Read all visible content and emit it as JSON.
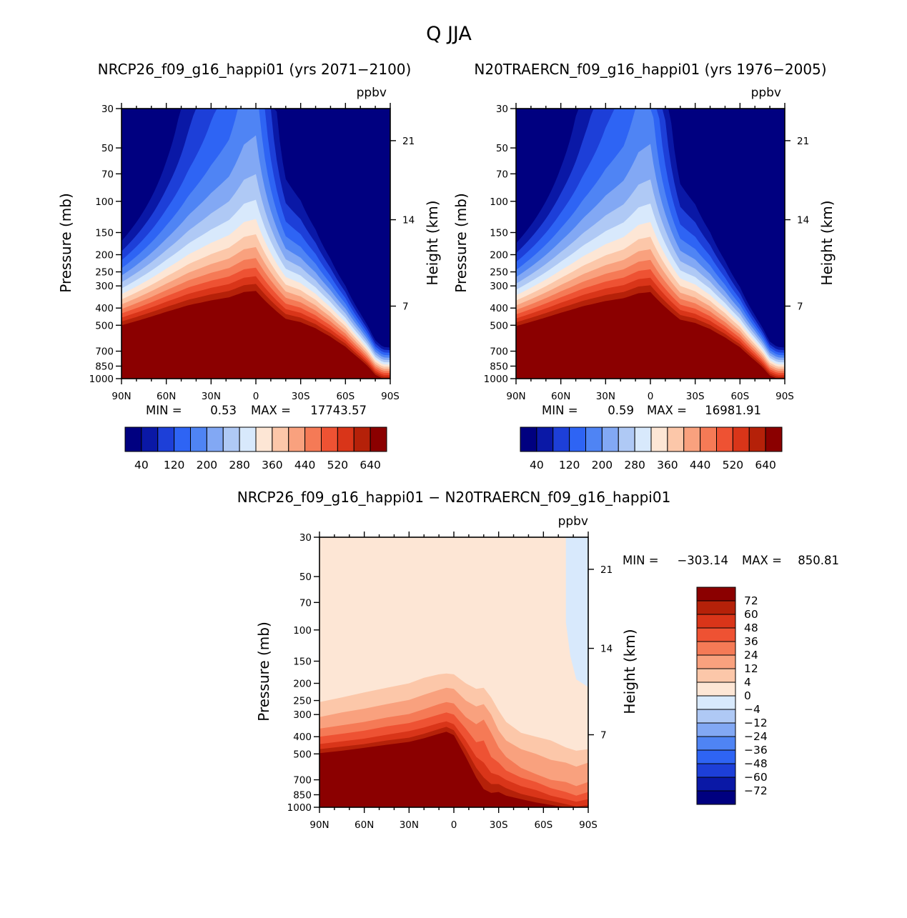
{
  "title": "Q  JJA",
  "chart_data": [
    {
      "type": "heatmap",
      "title": "NRCP26_f09_g16_happi01 (yrs 2071−2100)",
      "units": "ppbv",
      "ylabel": "Pressure (mb)",
      "ylabel_right": "Height (km)",
      "xticks": [
        "90N",
        "60N",
        "30N",
        "0",
        "30S",
        "60S",
        "90S"
      ],
      "xlim": [
        90,
        -90
      ],
      "yticks": [
        "30",
        "50",
        "70",
        "100",
        "150",
        "200",
        "250",
        "300",
        "400",
        "500",
        "700",
        "850",
        "1000"
      ],
      "ytick_values": [
        30,
        50,
        70,
        100,
        150,
        200,
        250,
        300,
        400,
        500,
        700,
        850,
        1000
      ],
      "ylim": [
        30,
        1000
      ],
      "yscale": "log",
      "height_ticks": [
        "21",
        "14",
        "7"
      ],
      "height_tick_pressures": [
        45.5,
        127,
        390
      ],
      "stats": {
        "min_label": "MIN =",
        "min": "0.53",
        "max_label": "MAX =",
        "max": "17743.57"
      },
      "colorbar": {
        "labels": [
          "40",
          "120",
          "200",
          "280",
          "360",
          "440",
          "520",
          "640"
        ],
        "colors": [
          "#000080",
          "#0a18a6",
          "#1d3fd8",
          "#2e64f4",
          "#4f84f4",
          "#82a8f4",
          "#afc9f5",
          "#d8e9fc",
          "#fde6d5",
          "#fcc7a9",
          "#f9a17e",
          "#f57a56",
          "#ee5233",
          "#d93519",
          "#b52109",
          "#8b0000"
        ]
      },
      "tropopause_profile": {
        "lat": [
          90,
          75,
          60,
          45,
          30,
          18,
          8,
          0,
          -10,
          -20,
          -30,
          -40,
          -50,
          -60,
          -70,
          -75,
          -80,
          -85,
          -90
        ],
        "pressure": [
          500,
          460,
          420,
          385,
          362,
          348,
          325,
          320,
          390,
          460,
          480,
          520,
          580,
          660,
          780,
          850,
          950,
          1000,
          1000
        ]
      },
      "level_spacing_mb": 25
    },
    {
      "type": "heatmap",
      "title": "N20TRAERCN_f09_g16_happi01 (yrs 1976−2005)",
      "units": "ppbv",
      "ylabel": "Pressure (mb)",
      "ylabel_right": "Height (km)",
      "xticks": [
        "90N",
        "60N",
        "30N",
        "0",
        "30S",
        "60S",
        "90S"
      ],
      "xlim": [
        90,
        -90
      ],
      "yticks": [
        "30",
        "50",
        "70",
        "100",
        "150",
        "200",
        "250",
        "300",
        "400",
        "500",
        "700",
        "850",
        "1000"
      ],
      "ytick_values": [
        30,
        50,
        70,
        100,
        150,
        200,
        250,
        300,
        400,
        500,
        700,
        850,
        1000
      ],
      "ylim": [
        30,
        1000
      ],
      "yscale": "log",
      "height_ticks": [
        "21",
        "14",
        "7"
      ],
      "height_tick_pressures": [
        45.5,
        127,
        390
      ],
      "stats": {
        "min_label": "MIN =",
        "min": "0.59",
        "max_label": "MAX =",
        "max": "16981.91"
      },
      "colorbar": {
        "labels": [
          "40",
          "120",
          "200",
          "280",
          "360",
          "440",
          "520",
          "640"
        ],
        "colors": [
          "#000080",
          "#0a18a6",
          "#1d3fd8",
          "#2e64f4",
          "#4f84f4",
          "#82a8f4",
          "#afc9f5",
          "#d8e9fc",
          "#fde6d5",
          "#fcc7a9",
          "#f9a17e",
          "#f57a56",
          "#ee5233",
          "#d93519",
          "#b52109",
          "#8b0000"
        ]
      },
      "tropopause_profile": {
        "lat": [
          90,
          75,
          60,
          45,
          30,
          18,
          8,
          0,
          -10,
          -20,
          -30,
          -40,
          -50,
          -60,
          -70,
          -75,
          -80,
          -85,
          -90
        ],
        "pressure": [
          505,
          465,
          425,
          390,
          365,
          352,
          330,
          325,
          395,
          465,
          485,
          525,
          585,
          665,
          790,
          860,
          960,
          1000,
          1000
        ]
      },
      "level_spacing_mb": 25
    },
    {
      "type": "heatmap",
      "title": "NRCP26_f09_g16_happi01 − N20TRAERCN_f09_g16_happi01",
      "units": "ppbv",
      "ylabel": "Pressure (mb)",
      "ylabel_right": "Height (km)",
      "xticks": [
        "90N",
        "60N",
        "30N",
        "0",
        "30S",
        "60S",
        "90S"
      ],
      "xlim": [
        90,
        -90
      ],
      "yticks": [
        "30",
        "50",
        "70",
        "100",
        "150",
        "200",
        "250",
        "300",
        "400",
        "500",
        "700",
        "850",
        "1000"
      ],
      "ytick_values": [
        30,
        50,
        70,
        100,
        150,
        200,
        250,
        300,
        400,
        500,
        700,
        850,
        1000
      ],
      "ylim": [
        30,
        1000
      ],
      "yscale": "log",
      "height_ticks": [
        "21",
        "14",
        "7"
      ],
      "height_tick_pressures": [
        45.5,
        127,
        390
      ],
      "stats": {
        "min_label": "MIN =",
        "min": "−303.14",
        "max_label": "MAX =",
        "max": "850.81"
      },
      "colorbar": {
        "labels": [
          "72",
          "60",
          "48",
          "36",
          "24",
          "12",
          "4",
          "0",
          "−4",
          "−12",
          "−24",
          "−36",
          "−48",
          "−60",
          "−72"
        ],
        "colors": [
          "#8b0000",
          "#b52109",
          "#d93519",
          "#ee5233",
          "#f57a56",
          "#f9a17e",
          "#fcc7a9",
          "#fde6d5",
          "#d8e9fc",
          "#afc9f5",
          "#82a8f4",
          "#4f84f4",
          "#2e64f4",
          "#1d3fd8",
          "#0a18a6",
          "#000080"
        ]
      },
      "regions": [
        {
          "level": "0 to 4",
          "color": "#fde6d5",
          "area": "upper troposphere and stratosphere"
        },
        {
          "level": "-4 to 0",
          "color": "#d8e9fc",
          "area": "southern high-latitude stratosphere"
        },
        {
          "level": "4 to 12",
          "color": "#fcc7a9"
        },
        {
          "level": "12 to 24",
          "color": "#f9a17e"
        },
        {
          "level": "24 to 36",
          "color": "#f57a56"
        },
        {
          "level": "36 to 48",
          "color": "#ee5233"
        },
        {
          "level": "48 to 60",
          "color": "#d93519"
        },
        {
          "level": "60 to 72",
          "color": "#b52109"
        },
        {
          "level": "> 72",
          "color": "#8b0000",
          "area": "lower troposphere"
        }
      ]
    }
  ]
}
